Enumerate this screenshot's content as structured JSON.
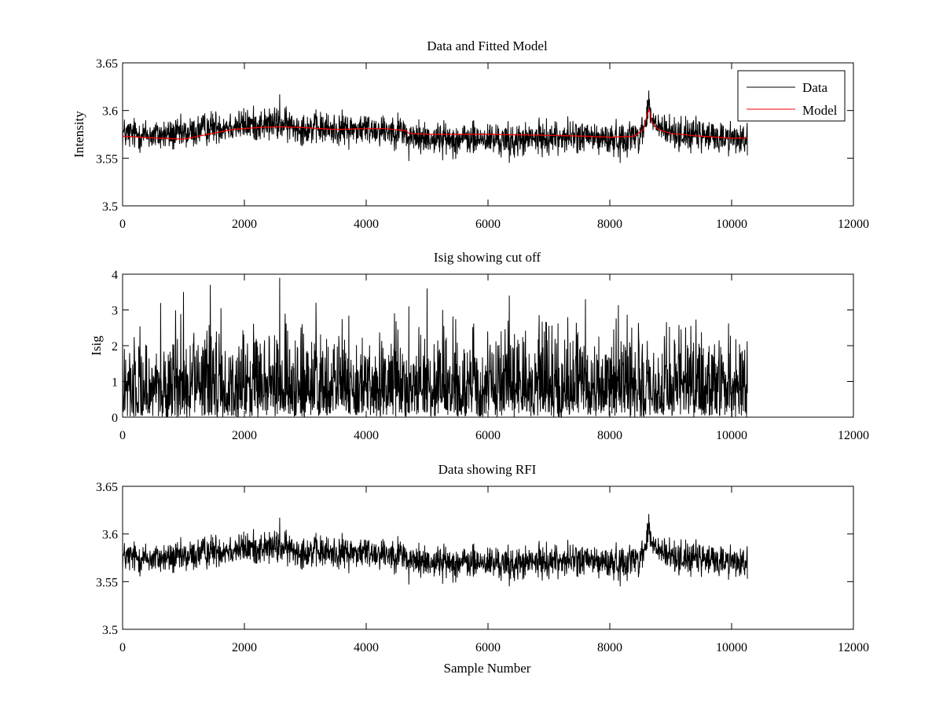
{
  "figure": {
    "background": "#ffffff",
    "data_color": "#000000",
    "model_color": "#ff0000"
  },
  "chart_data": [
    {
      "type": "line",
      "title": "Data and Fitted Model",
      "xlabel": "",
      "ylabel": "Intensity",
      "xlim": [
        0,
        12000
      ],
      "ylim": [
        3.5,
        3.65
      ],
      "xticks": [
        0,
        2000,
        4000,
        6000,
        8000,
        10000,
        12000
      ],
      "xtick_labels": [
        "0",
        "2000",
        "4000",
        "6000",
        "8000",
        "10000",
        "12000"
      ],
      "yticks": [
        3.5,
        3.55,
        3.6,
        3.65
      ],
      "ytick_labels": [
        "3.5",
        "3.55",
        "3.6",
        "3.65"
      ],
      "legend": {
        "position": "top-right",
        "entries": [
          "Data",
          "Model"
        ]
      },
      "series": [
        {
          "name": "Data",
          "color": "#000000",
          "kind": "noisy",
          "x_end": 10260,
          "baseline": [
            [
              0,
              3.576
            ],
            [
              500,
              3.574
            ],
            [
              1000,
              3.575
            ],
            [
              1500,
              3.583
            ],
            [
              2000,
              3.585
            ],
            [
              2500,
              3.586
            ],
            [
              3000,
              3.582
            ],
            [
              3500,
              3.58
            ],
            [
              4000,
              3.581
            ],
            [
              4600,
              3.579
            ],
            [
              4700,
              3.572
            ],
            [
              5500,
              3.57
            ],
            [
              6000,
              3.57
            ],
            [
              6400,
              3.568
            ],
            [
              7000,
              3.572
            ],
            [
              7500,
              3.573
            ],
            [
              8000,
              3.569
            ],
            [
              8500,
              3.575
            ],
            [
              8600,
              3.59
            ],
            [
              8640,
              3.604
            ],
            [
              8700,
              3.588
            ],
            [
              8900,
              3.578
            ],
            [
              9500,
              3.573
            ],
            [
              10260,
              3.571
            ]
          ],
          "noise_amplitude": 0.0085,
          "spikes": [
            [
              2580,
              3.617
            ],
            [
              8640,
              3.621
            ],
            [
              4700,
              3.547
            ],
            [
              6350,
              3.545
            ],
            [
              8170,
              3.545
            ],
            [
              10260,
              3.553
            ]
          ]
        },
        {
          "name": "Model",
          "color": "#ff0000",
          "kind": "smooth",
          "points": [
            [
              0,
              3.573
            ],
            [
              300,
              3.572
            ],
            [
              600,
              3.571
            ],
            [
              1000,
              3.57
            ],
            [
              1400,
              3.575
            ],
            [
              1800,
              3.58
            ],
            [
              2200,
              3.582
            ],
            [
              2600,
              3.583
            ],
            [
              3000,
              3.582
            ],
            [
              3500,
              3.58
            ],
            [
              4000,
              3.581
            ],
            [
              4300,
              3.581
            ],
            [
              4650,
              3.579
            ],
            [
              4700,
              3.576
            ],
            [
              5000,
              3.575
            ],
            [
              6000,
              3.575
            ],
            [
              7000,
              3.574
            ],
            [
              7600,
              3.573
            ],
            [
              8000,
              3.572
            ],
            [
              8400,
              3.573
            ],
            [
              8550,
              3.58
            ],
            [
              8620,
              3.597
            ],
            [
              8650,
              3.601
            ],
            [
              8700,
              3.586
            ],
            [
              8800,
              3.58
            ],
            [
              9000,
              3.576
            ],
            [
              9500,
              3.573
            ],
            [
              10000,
              3.571
            ],
            [
              10260,
              3.571
            ]
          ]
        }
      ]
    },
    {
      "type": "line",
      "title": "Isig showing cut off",
      "xlabel": "",
      "ylabel": "Isig",
      "xlim": [
        0,
        12000
      ],
      "ylim": [
        0,
        4
      ],
      "xticks": [
        0,
        2000,
        4000,
        6000,
        8000,
        10000,
        12000
      ],
      "xtick_labels": [
        "0",
        "2000",
        "4000",
        "6000",
        "8000",
        "10000",
        "12000"
      ],
      "yticks": [
        0,
        1,
        2,
        3,
        4
      ],
      "ytick_labels": [
        "0",
        "1",
        "2",
        "3",
        "4"
      ],
      "series": [
        {
          "name": "Isig",
          "color": "#000000",
          "kind": "abs-noise",
          "x_end": 10260,
          "scale": 0.8,
          "spikes": [
            [
              1440,
              3.7
            ],
            [
              2580,
              3.9
            ],
            [
              5000,
              3.6
            ],
            [
              6350,
              3.4
            ],
            [
              7600,
              3.3
            ],
            [
              1000,
              3.5
            ],
            [
              4700,
              3.1
            ]
          ]
        }
      ]
    },
    {
      "type": "line",
      "title": "Data showing RFI",
      "xlabel": "Sample Number",
      "ylabel": "",
      "xlim": [
        0,
        12000
      ],
      "ylim": [
        3.5,
        3.65
      ],
      "xticks": [
        0,
        2000,
        4000,
        6000,
        8000,
        10000,
        12000
      ],
      "xtick_labels": [
        "0",
        "2000",
        "4000",
        "6000",
        "8000",
        "10000",
        "12000"
      ],
      "yticks": [
        3.5,
        3.55,
        3.6,
        3.65
      ],
      "ytick_labels": [
        "3.5",
        "3.55",
        "3.6",
        "3.65"
      ],
      "series": [
        {
          "name": "Data",
          "color": "#000000",
          "kind": "noisy",
          "x_end": 10260,
          "baseline": [
            [
              0,
              3.576
            ],
            [
              500,
              3.574
            ],
            [
              1000,
              3.575
            ],
            [
              1500,
              3.583
            ],
            [
              2000,
              3.585
            ],
            [
              2500,
              3.586
            ],
            [
              3000,
              3.582
            ],
            [
              3500,
              3.58
            ],
            [
              4000,
              3.581
            ],
            [
              4600,
              3.579
            ],
            [
              4700,
              3.572
            ],
            [
              5500,
              3.57
            ],
            [
              6000,
              3.57
            ],
            [
              6400,
              3.568
            ],
            [
              7000,
              3.572
            ],
            [
              7500,
              3.573
            ],
            [
              8000,
              3.569
            ],
            [
              8500,
              3.575
            ],
            [
              8600,
              3.59
            ],
            [
              8640,
              3.604
            ],
            [
              8700,
              3.588
            ],
            [
              8900,
              3.578
            ],
            [
              9500,
              3.573
            ],
            [
              10260,
              3.571
            ]
          ],
          "noise_amplitude": 0.0085,
          "spikes": [
            [
              2580,
              3.617
            ],
            [
              8640,
              3.621
            ],
            [
              4700,
              3.547
            ],
            [
              6350,
              3.545
            ],
            [
              8170,
              3.545
            ],
            [
              10260,
              3.553
            ]
          ]
        }
      ]
    }
  ]
}
